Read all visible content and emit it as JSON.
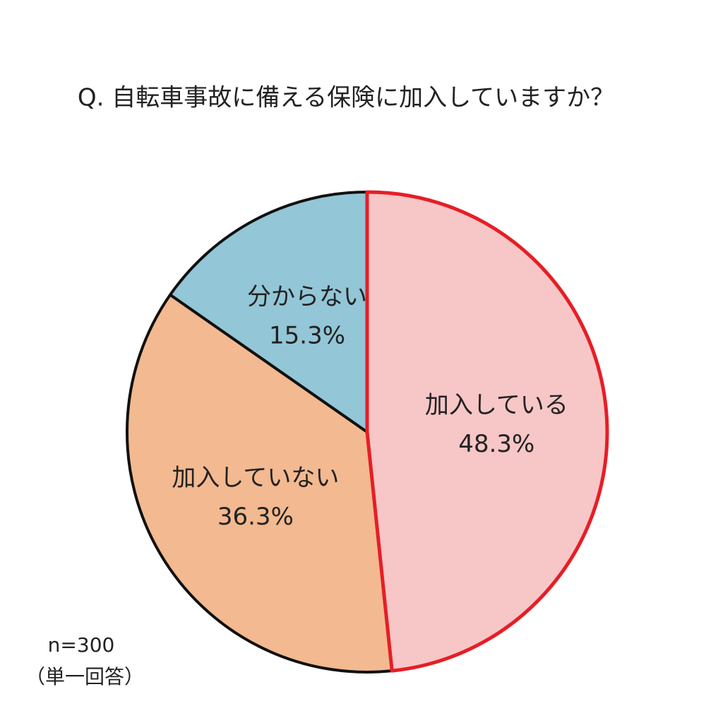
{
  "chart_data": {
    "type": "pie",
    "title": "Q. 自転車事故に備える保険に加入していますか？",
    "categories": [
      "加入している",
      "加入していない",
      "分からない"
    ],
    "values": [
      48.3,
      36.3,
      15.3
    ],
    "value_labels": [
      "48.3%",
      "36.3%",
      "15.3%"
    ],
    "colors": [
      "#f7c6c7",
      "#f3b990",
      "#93c6d6"
    ],
    "edge_colors": [
      "#e61e26",
      "#111111",
      "#111111"
    ],
    "annotations": [
      "n=300",
      "（単一回答）"
    ]
  }
}
